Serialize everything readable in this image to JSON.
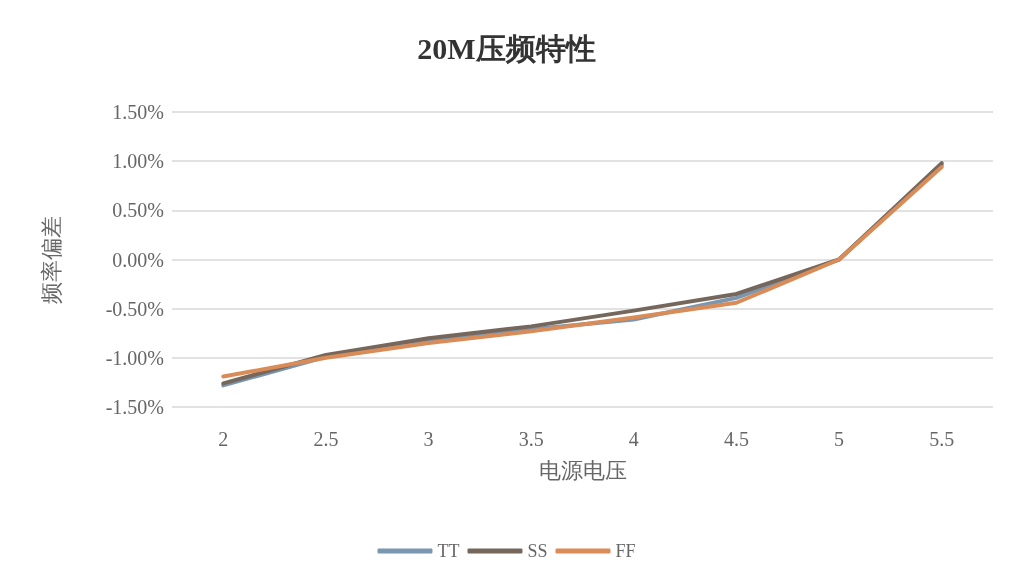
{
  "chart_data": {
    "type": "line",
    "title": "20M压频特性",
    "xlabel": "电源电压",
    "ylabel": "频率偏差",
    "categories": [
      "2",
      "2.5",
      "3",
      "3.5",
      "4",
      "4.5",
      "5",
      "5.5"
    ],
    "series": [
      {
        "name": "TT",
        "color": "#7a96b0",
        "values": [
          -1.28,
          -0.99,
          -0.83,
          -0.71,
          -0.61,
          -0.39,
          0,
          0.96
        ]
      },
      {
        "name": "SS",
        "color": "#76675c",
        "values": [
          -1.26,
          -0.97,
          -0.8,
          -0.68,
          -0.52,
          -0.35,
          0,
          0.98
        ]
      },
      {
        "name": "FF",
        "color": "#d98c57",
        "values": [
          -1.19,
          -1.0,
          -0.85,
          -0.73,
          -0.59,
          -0.44,
          0,
          0.94
        ]
      }
    ],
    "ylim": [
      -1.5,
      1.5
    ],
    "yticks": [
      {
        "value": -1.5,
        "label": "-1.50%"
      },
      {
        "value": -1,
        "label": "-1.00%"
      },
      {
        "value": -0.5,
        "label": "-0.50%"
      },
      {
        "value": 0,
        "label": "0.00%"
      },
      {
        "value": 0.5,
        "label": "0.50%"
      },
      {
        "value": 1,
        "label": "1.00%"
      },
      {
        "value": 1.5,
        "label": "1.50%"
      }
    ],
    "grid": "y",
    "legend": "bottom",
    "marker": "none",
    "line_style": "solid"
  }
}
